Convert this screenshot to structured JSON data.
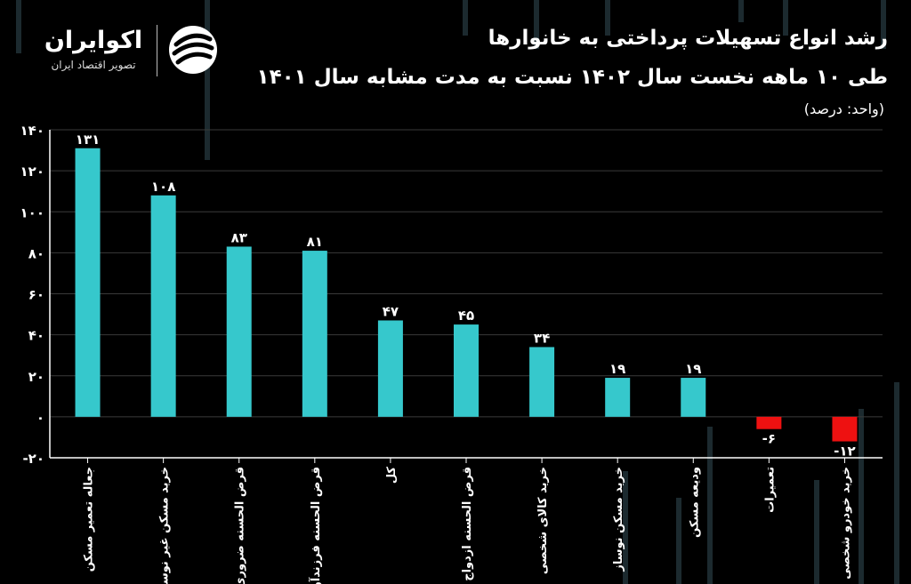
{
  "header": {
    "title_line1": "رشد انواع تسهیلات پرداختی به خانوارها",
    "title_line2": "طی ۱۰ ماهه نخست سال ۱۴۰۲ نسبت به مدت مشابه سال ۱۴۰۱",
    "unit": "(واحد: درصد)"
  },
  "logo": {
    "name": "اکوایران",
    "tagline": "تصویر اقتصاد ایران",
    "icon": "ecoiran-logo-icon"
  },
  "colors": {
    "positive": "#36C8CC",
    "negative": "#EE1111",
    "grid": "#3A3A3A",
    "background": "#000000"
  },
  "chart_data": {
    "type": "bar",
    "categories": [
      "جعاله تعمیر مسکن",
      "خرید مسکن غیر نوساز",
      "قرض الحسنه ضروری",
      "قرض الحسنه فرزندآوری",
      "کل",
      "قرض الحسنه ازدواج",
      "خرید کالای شخصی",
      "خرید مسکن نوساز",
      "ودیعه مسکن",
      "تعمیرات",
      "خرید خودرو شخصی"
    ],
    "values": [
      131,
      108,
      83,
      81,
      47,
      45,
      34,
      19,
      19,
      -6,
      -12
    ],
    "value_labels": [
      "۱۳۱",
      "۱۰۸",
      "۸۳",
      "۸۱",
      "۴۷",
      "۴۵",
      "۳۴",
      "۱۹",
      "۱۹",
      "-۶",
      "-۱۲"
    ],
    "yticks": [
      140,
      120,
      100,
      80,
      60,
      40,
      20,
      0,
      -20
    ],
    "ytick_labels": [
      "۱۴۰",
      "۱۲۰",
      "۱۰۰",
      "۸۰",
      "۶۰",
      "۴۰",
      "۲۰",
      "۰",
      "-۲۰"
    ],
    "ylim": [
      -20,
      140
    ],
    "grid": true,
    "legend": "none"
  }
}
